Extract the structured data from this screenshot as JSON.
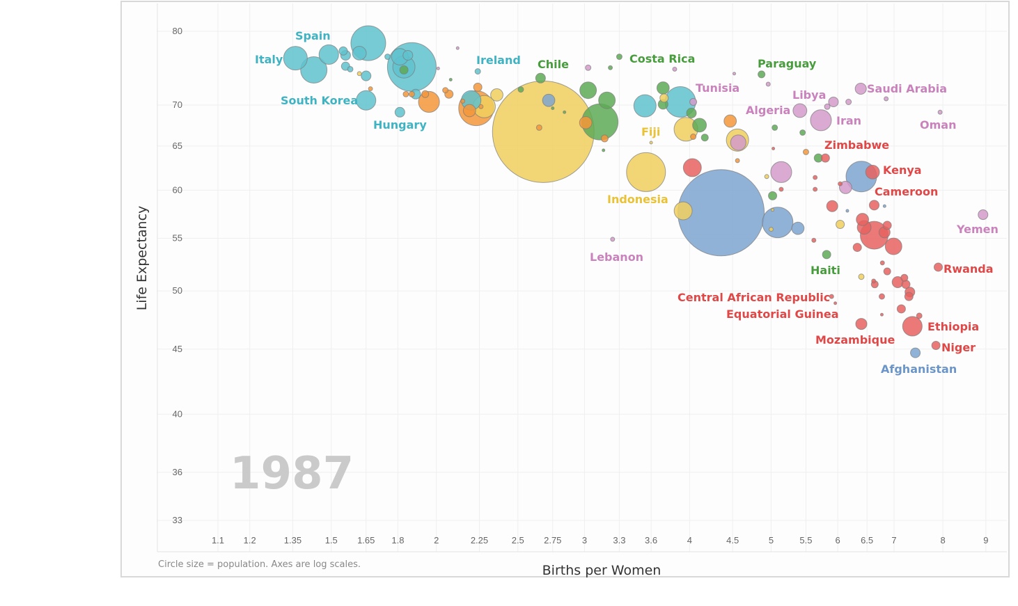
{
  "chart_data": {
    "type": "scatter",
    "subtype": "bubble",
    "xlabel": "Births per Women",
    "ylabel": "Life Expectancy",
    "note": "Circle size = population.  Axes are log scales.",
    "year": "1987",
    "x_scale": "log",
    "y_scale": "log",
    "xlim": [
      1.0,
      9.5
    ],
    "ylim": [
      32,
      84
    ],
    "x_ticks": [
      "1.1",
      "1.2",
      "1.35",
      "1.5",
      "1.65",
      "1.8",
      "2",
      "2.25",
      "2.5",
      "2.75",
      "3",
      "3.3",
      "3.6",
      "4",
      "4.5",
      "5",
      "5.5",
      "6",
      "6.5",
      "7",
      "8",
      "9"
    ],
    "y_ticks": [
      "80",
      "70",
      "65",
      "60",
      "55",
      "50",
      "45",
      "40",
      "36",
      "33"
    ],
    "grid": true,
    "size_unit": "population (millions, estimated)",
    "colors": {
      "teal": {
        "fill": "#5fc2ce",
        "label": "#3fb3c2"
      },
      "orange": {
        "fill": "#f5963a",
        "label": "#f08a2a"
      },
      "yellow": {
        "fill": "#f0cf5e",
        "label": "#eac236"
      },
      "green": {
        "fill": "#5eaa56",
        "label": "#479c3c"
      },
      "pink": {
        "fill": "#d49bca",
        "label": "#c982bc"
      },
      "red": {
        "fill": "#e6615f",
        "label": "#e04848"
      },
      "blue": {
        "fill": "#7ea5d0",
        "label": "#6b95c8"
      }
    },
    "points": [
      {
        "x": 1.36,
        "y": 76.2,
        "pop": 59,
        "g": "teal",
        "name": "Italy"
      },
      {
        "x": 1.43,
        "y": 74.6,
        "pop": 73,
        "g": "teal"
      },
      {
        "x": 1.49,
        "y": 76.7,
        "pop": 40,
        "g": "teal",
        "name": "Spain"
      },
      {
        "x": 1.55,
        "y": 77.2,
        "pop": 7.3,
        "g": "teal"
      },
      {
        "x": 1.56,
        "y": 76.6,
        "pop": 10,
        "g": "teal"
      },
      {
        "x": 1.56,
        "y": 75.1,
        "pop": 7.3,
        "g": "teal"
      },
      {
        "x": 1.58,
        "y": 74.7,
        "pop": 3.2,
        "g": "teal"
      },
      {
        "x": 1.62,
        "y": 76.9,
        "pop": 20,
        "g": "teal"
      },
      {
        "x": 1.66,
        "y": 78.3,
        "pop": 127,
        "g": "teal"
      },
      {
        "x": 1.65,
        "y": 73.8,
        "pop": 10,
        "g": "teal"
      },
      {
        "x": 1.65,
        "y": 70.6,
        "pop": 40,
        "g": "teal",
        "name": "South Korea"
      },
      {
        "x": 1.81,
        "y": 69.1,
        "pop": 10,
        "g": "teal",
        "name": "Hungary"
      },
      {
        "x": 1.75,
        "y": 76.4,
        "pop": 3.2,
        "g": "teal"
      },
      {
        "x": 1.81,
        "y": 76.4,
        "pop": 29,
        "g": "teal"
      },
      {
        "x": 1.85,
        "y": 76.6,
        "pop": 10,
        "g": "teal"
      },
      {
        "x": 1.87,
        "y": 75.0,
        "pop": 249,
        "g": "teal"
      },
      {
        "x": 1.83,
        "y": 75.0,
        "pop": 52,
        "g": "teal"
      },
      {
        "x": 1.89,
        "y": 71.4,
        "pop": 10,
        "g": "teal"
      },
      {
        "x": 2.24,
        "y": 74.4,
        "pop": 3.2,
        "g": "teal",
        "name": "Ireland"
      },
      {
        "x": 2.2,
        "y": 70.6,
        "pop": 40,
        "g": "teal"
      },
      {
        "x": 3.54,
        "y": 69.9,
        "pop": 52,
        "g": "teal"
      },
      {
        "x": 3.9,
        "y": 70.4,
        "pop": 98,
        "g": "teal"
      },
      {
        "x": 2.72,
        "y": 70.6,
        "pop": 16,
        "g": "blue"
      },
      {
        "x": 1.96,
        "y": 70.4,
        "pop": 46,
        "g": "orange"
      },
      {
        "x": 1.84,
        "y": 71.4,
        "pop": 3.2,
        "g": "orange"
      },
      {
        "x": 1.87,
        "y": 71.4,
        "pop": 3.2,
        "g": "orange"
      },
      {
        "x": 1.94,
        "y": 71.4,
        "pop": 5.1,
        "g": "orange"
      },
      {
        "x": 2.05,
        "y": 71.9,
        "pop": 3.2,
        "g": "orange"
      },
      {
        "x": 2.07,
        "y": 71.4,
        "pop": 7.3,
        "g": "orange"
      },
      {
        "x": 2.24,
        "y": 72.3,
        "pop": 7.3,
        "g": "orange"
      },
      {
        "x": 2.23,
        "y": 69.6,
        "pop": 127,
        "g": "orange"
      },
      {
        "x": 2.19,
        "y": 69.3,
        "pop": 16,
        "g": "orange"
      },
      {
        "x": 2.15,
        "y": 70.5,
        "pop": 1.8,
        "g": "orange"
      },
      {
        "x": 2.26,
        "y": 69.8,
        "pop": 1.8,
        "g": "orange"
      },
      {
        "x": 2.65,
        "y": 67.2,
        "pop": 3.2,
        "g": "orange"
      },
      {
        "x": 3.01,
        "y": 67.8,
        "pop": 16,
        "g": "orange"
      },
      {
        "x": 3.17,
        "y": 65.9,
        "pop": 5.1,
        "g": "orange"
      },
      {
        "x": 4.47,
        "y": 68.0,
        "pop": 16,
        "g": "orange"
      },
      {
        "x": 4.04,
        "y": 66.1,
        "pop": 3.2,
        "g": "orange"
      },
      {
        "x": 5.5,
        "y": 64.3,
        "pop": 3.2,
        "g": "orange"
      },
      {
        "x": 4.56,
        "y": 63.3,
        "pop": 1.8,
        "g": "orange"
      },
      {
        "x": 1.67,
        "y": 72.1,
        "pop": 1.8,
        "g": "orange"
      },
      {
        "x": 2.68,
        "y": 66.7,
        "pop": 1081,
        "g": "yellow"
      },
      {
        "x": 2.28,
        "y": 69.8,
        "pop": 52,
        "g": "yellow"
      },
      {
        "x": 2.36,
        "y": 71.3,
        "pop": 16,
        "g": "yellow"
      },
      {
        "x": 1.62,
        "y": 74.1,
        "pop": 1.8,
        "g": "yellow"
      },
      {
        "x": 3.55,
        "y": 62.0,
        "pop": 159,
        "g": "yellow",
        "name": "Indonesia"
      },
      {
        "x": 3.96,
        "y": 67.0,
        "pop": 59,
        "g": "yellow"
      },
      {
        "x": 4.56,
        "y": 65.7,
        "pop": 52,
        "g": "yellow"
      },
      {
        "x": 3.93,
        "y": 57.8,
        "pop": 34,
        "g": "yellow"
      },
      {
        "x": 3.73,
        "y": 70.9,
        "pop": 7.3,
        "g": "yellow"
      },
      {
        "x": 4.94,
        "y": 61.5,
        "pop": 1.8,
        "g": "yellow"
      },
      {
        "x": 5.0,
        "y": 55.9,
        "pop": 1.8,
        "g": "yellow"
      },
      {
        "x": 6.04,
        "y": 56.4,
        "pop": 7.3,
        "g": "yellow"
      },
      {
        "x": 6.4,
        "y": 51.3,
        "pop": 3.2,
        "g": "yellow"
      },
      {
        "x": 3.6,
        "y": 65.4,
        "pop": 0.8,
        "g": "yellow",
        "name": "Fiji"
      },
      {
        "x": 5.02,
        "y": 57.9,
        "pop": 0.8,
        "g": "yellow"
      },
      {
        "x": 1.83,
        "y": 74.6,
        "pop": 7.3,
        "g": "green"
      },
      {
        "x": 2.52,
        "y": 72.0,
        "pop": 3.2,
        "g": "green"
      },
      {
        "x": 2.66,
        "y": 73.5,
        "pop": 10,
        "g": "green",
        "name": "Chile"
      },
      {
        "x": 3.03,
        "y": 71.9,
        "pop": 29,
        "g": "green"
      },
      {
        "x": 3.19,
        "y": 70.6,
        "pop": 29,
        "g": "green"
      },
      {
        "x": 3.13,
        "y": 67.9,
        "pop": 137,
        "g": "green"
      },
      {
        "x": 3.22,
        "y": 74.9,
        "pop": 1.8,
        "g": "green"
      },
      {
        "x": 3.3,
        "y": 76.4,
        "pop": 3.2,
        "g": "green",
        "name": "Costa Rica"
      },
      {
        "x": 3.72,
        "y": 72.2,
        "pop": 16,
        "g": "green"
      },
      {
        "x": 3.72,
        "y": 70.1,
        "pop": 10,
        "g": "green"
      },
      {
        "x": 4.02,
        "y": 69.0,
        "pop": 10,
        "g": "green"
      },
      {
        "x": 4.11,
        "y": 67.5,
        "pop": 20,
        "g": "green"
      },
      {
        "x": 4.17,
        "y": 66.0,
        "pop": 5.1,
        "g": "green"
      },
      {
        "x": 4.87,
        "y": 74.0,
        "pop": 5.1,
        "g": "green",
        "name": "Paraguay"
      },
      {
        "x": 5.05,
        "y": 67.2,
        "pop": 3.2,
        "g": "green"
      },
      {
        "x": 5.45,
        "y": 66.6,
        "pop": 3.2,
        "g": "green"
      },
      {
        "x": 5.69,
        "y": 63.6,
        "pop": 7.3,
        "g": "green"
      },
      {
        "x": 5.02,
        "y": 59.4,
        "pop": 7.3,
        "g": "green"
      },
      {
        "x": 5.82,
        "y": 53.4,
        "pop": 7.3,
        "g": "green",
        "name": "Haiti"
      },
      {
        "x": 2.84,
        "y": 69.1,
        "pop": 0.8,
        "g": "green"
      },
      {
        "x": 2.75,
        "y": 69.6,
        "pop": 0.8,
        "g": "green"
      },
      {
        "x": 3.16,
        "y": 64.5,
        "pop": 0.8,
        "g": "green"
      },
      {
        "x": 2.08,
        "y": 73.3,
        "pop": 0.8,
        "g": "green"
      },
      {
        "x": 3.03,
        "y": 74.9,
        "pop": 3.2,
        "g": "pink"
      },
      {
        "x": 3.84,
        "y": 74.7,
        "pop": 1.8,
        "g": "pink"
      },
      {
        "x": 4.04,
        "y": 70.4,
        "pop": 5.1,
        "g": "pink",
        "name": "Tunisia"
      },
      {
        "x": 4.52,
        "y": 74.1,
        "pop": 0.8,
        "g": "pink"
      },
      {
        "x": 4.96,
        "y": 72.7,
        "pop": 1.8,
        "g": "pink"
      },
      {
        "x": 5.41,
        "y": 69.3,
        "pop": 20,
        "g": "pink",
        "name": "Algeria"
      },
      {
        "x": 5.73,
        "y": 68.1,
        "pop": 46,
        "g": "pink",
        "name": "Iran"
      },
      {
        "x": 5.93,
        "y": 70.4,
        "pop": 10,
        "g": "pink"
      },
      {
        "x": 5.83,
        "y": 69.8,
        "pop": 3.2,
        "g": "pink",
        "name": "Libya"
      },
      {
        "x": 6.18,
        "y": 70.4,
        "pop": 3.2,
        "g": "pink"
      },
      {
        "x": 6.39,
        "y": 72.1,
        "pop": 13,
        "g": "pink",
        "name": "Saudi Arabia"
      },
      {
        "x": 6.85,
        "y": 70.8,
        "pop": 1.8,
        "g": "pink"
      },
      {
        "x": 7.94,
        "y": 69.1,
        "pop": 1.8,
        "g": "pink",
        "name": "Oman"
      },
      {
        "x": 4.57,
        "y": 65.4,
        "pop": 25,
        "g": "pink"
      },
      {
        "x": 5.14,
        "y": 62.0,
        "pop": 46,
        "g": "pink"
      },
      {
        "x": 6.13,
        "y": 60.3,
        "pop": 16,
        "g": "pink"
      },
      {
        "x": 8.93,
        "y": 57.4,
        "pop": 10,
        "g": "pink",
        "name": "Yemen"
      },
      {
        "x": 3.24,
        "y": 54.9,
        "pop": 1.8,
        "g": "pink",
        "name": "Lebanon"
      },
      {
        "x": 2.12,
        "y": 77.6,
        "pop": 0.8,
        "g": "pink"
      },
      {
        "x": 2.01,
        "y": 74.8,
        "pop": 0.8,
        "g": "pink"
      },
      {
        "x": 4.03,
        "y": 62.5,
        "pop": 34,
        "g": "red"
      },
      {
        "x": 5.8,
        "y": 63.6,
        "pop": 7.3,
        "g": "red",
        "name": "Zimbabwe"
      },
      {
        "x": 6.6,
        "y": 62.0,
        "pop": 20,
        "g": "red",
        "name": "Kenya"
      },
      {
        "x": 5.03,
        "y": 64.7,
        "pop": 0.8,
        "g": "red"
      },
      {
        "x": 5.14,
        "y": 60.1,
        "pop": 1.8,
        "g": "red"
      },
      {
        "x": 5.64,
        "y": 61.4,
        "pop": 1.8,
        "g": "red"
      },
      {
        "x": 5.64,
        "y": 60.1,
        "pop": 1.8,
        "g": "red"
      },
      {
        "x": 5.91,
        "y": 58.3,
        "pop": 13,
        "g": "red"
      },
      {
        "x": 6.63,
        "y": 58.4,
        "pop": 10,
        "g": "red",
        "name": "Cameroon"
      },
      {
        "x": 6.42,
        "y": 56.9,
        "pop": 16,
        "g": "red"
      },
      {
        "x": 6.45,
        "y": 56.1,
        "pop": 20,
        "g": "red"
      },
      {
        "x": 6.63,
        "y": 55.3,
        "pop": 81,
        "g": "red"
      },
      {
        "x": 6.87,
        "y": 56.3,
        "pop": 7.3,
        "g": "red"
      },
      {
        "x": 6.82,
        "y": 55.6,
        "pop": 13,
        "g": "red"
      },
      {
        "x": 6.99,
        "y": 54.2,
        "pop": 29,
        "g": "red"
      },
      {
        "x": 6.33,
        "y": 54.1,
        "pop": 7.3,
        "g": "red"
      },
      {
        "x": 5.62,
        "y": 54.8,
        "pop": 1.8,
        "g": "red"
      },
      {
        "x": 6.78,
        "y": 52.6,
        "pop": 1.8,
        "g": "red"
      },
      {
        "x": 6.87,
        "y": 51.8,
        "pop": 5.1,
        "g": "red"
      },
      {
        "x": 6.62,
        "y": 50.9,
        "pop": 1.8,
        "g": "red"
      },
      {
        "x": 6.64,
        "y": 50.6,
        "pop": 5.1,
        "g": "red"
      },
      {
        "x": 7.07,
        "y": 50.8,
        "pop": 13,
        "g": "red"
      },
      {
        "x": 7.2,
        "y": 51.2,
        "pop": 5.1,
        "g": "red"
      },
      {
        "x": 7.23,
        "y": 50.6,
        "pop": 7.3,
        "g": "red"
      },
      {
        "x": 7.31,
        "y": 49.9,
        "pop": 10,
        "g": "red"
      },
      {
        "x": 7.29,
        "y": 49.5,
        "pop": 7.3,
        "g": "red"
      },
      {
        "x": 6.77,
        "y": 49.5,
        "pop": 3.2,
        "g": "red"
      },
      {
        "x": 7.14,
        "y": 48.4,
        "pop": 7.3,
        "g": "red"
      },
      {
        "x": 7.5,
        "y": 47.8,
        "pop": 3.2,
        "g": "red"
      },
      {
        "x": 7.36,
        "y": 46.9,
        "pop": 40,
        "g": "red",
        "name": "Ethiopia"
      },
      {
        "x": 6.4,
        "y": 47.1,
        "pop": 13,
        "g": "red",
        "name": "Mozambique"
      },
      {
        "x": 7.9,
        "y": 52.2,
        "pop": 7.3,
        "g": "red",
        "name": "Rwanda"
      },
      {
        "x": 7.85,
        "y": 45.3,
        "pop": 7.3,
        "g": "red",
        "name": "Niger"
      },
      {
        "x": 5.9,
        "y": 49.5,
        "pop": 1.8,
        "g": "red",
        "name": "Central African Republic"
      },
      {
        "x": 5.96,
        "y": 48.9,
        "pop": 0.8,
        "g": "red",
        "name": "Equatorial Guinea"
      },
      {
        "x": 6.77,
        "y": 47.9,
        "pop": 0.8,
        "g": "red"
      },
      {
        "x": 6.04,
        "y": 60.7,
        "pop": 1.8,
        "g": "red"
      },
      {
        "x": 4.36,
        "y": 57.6,
        "pop": 780,
        "g": "blue"
      },
      {
        "x": 5.09,
        "y": 56.6,
        "pop": 98,
        "g": "blue"
      },
      {
        "x": 5.38,
        "y": 56.0,
        "pop": 16,
        "g": "blue"
      },
      {
        "x": 6.4,
        "y": 61.5,
        "pop": 98,
        "g": "blue"
      },
      {
        "x": 7.42,
        "y": 44.7,
        "pop": 10,
        "g": "blue",
        "name": "Afghanistan"
      },
      {
        "x": 6.82,
        "y": 58.3,
        "pop": 0.8,
        "g": "blue"
      },
      {
        "x": 6.16,
        "y": 57.8,
        "pop": 0.8,
        "g": "blue"
      }
    ]
  }
}
